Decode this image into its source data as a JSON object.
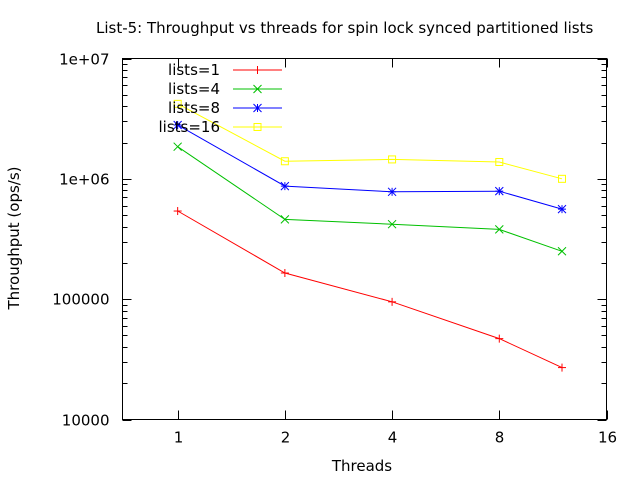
{
  "chart_data": {
    "type": "line",
    "title": "List-5: Throughput vs threads for spin lock synced partitioned lists",
    "xlabel": "Threads",
    "ylabel": "Throughput (ops/s)",
    "x_scale": "log2",
    "y_scale": "log10",
    "xlim": [
      0.7,
      16
    ],
    "ylim": [
      10000,
      10000000
    ],
    "x_ticks": [
      1,
      2,
      4,
      8,
      16
    ],
    "y_ticks": [
      10000,
      100000,
      1000000,
      10000000
    ],
    "y_tick_labels": [
      "10000",
      "100000",
      "1e+06",
      "1e+07"
    ],
    "x_tick_labels": [
      "1",
      "2",
      "4",
      "8",
      "16"
    ],
    "grid": false,
    "legend_position": "top-left",
    "x": [
      1,
      2,
      4,
      8,
      12
    ],
    "series": [
      {
        "name": "lists=1",
        "color": "#ff0000",
        "marker": "plus",
        "values": [
          540000,
          165000,
          95000,
          47000,
          27000
        ]
      },
      {
        "name": "lists=4",
        "color": "#00c000",
        "marker": "cross",
        "values": [
          1850000,
          460000,
          420000,
          380000,
          250000
        ]
      },
      {
        "name": "lists=8",
        "color": "#0000ff",
        "marker": "star",
        "values": [
          2800000,
          870000,
          780000,
          790000,
          560000
        ]
      },
      {
        "name": "lists=16",
        "color": "#ffff00",
        "marker": "square",
        "values": [
          4200000,
          1400000,
          1450000,
          1380000,
          1000000
        ]
      }
    ]
  }
}
